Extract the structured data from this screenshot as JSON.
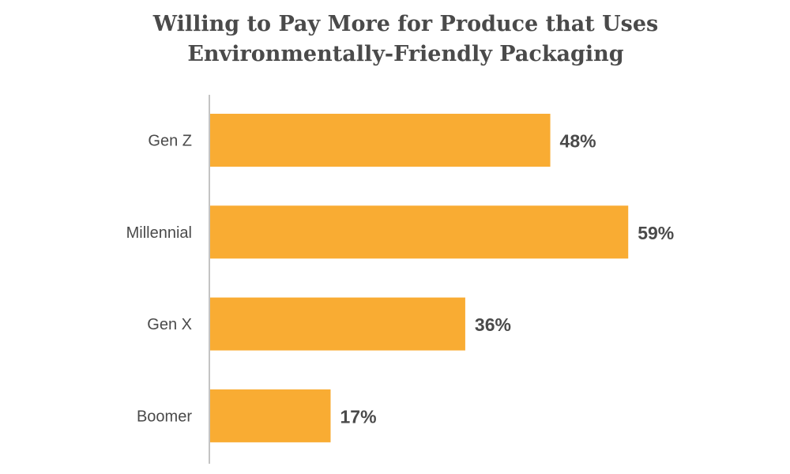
{
  "chart_data": {
    "type": "bar",
    "orientation": "horizontal",
    "title_lines": [
      "Willing to Pay More for Produce that Uses",
      "Environmentally-Friendly Packaging"
    ],
    "categories": [
      "Gen Z",
      "Millennial",
      "Gen X",
      "Boomer"
    ],
    "values": [
      48,
      59,
      36,
      17
    ],
    "value_labels": [
      "48%",
      "59%",
      "36%",
      "17%"
    ],
    "unit": "%",
    "xlim": [
      0,
      60
    ],
    "grid": false,
    "legend": "none",
    "bar_color": "#F9AC33",
    "text_color": "#4a4a4a"
  }
}
